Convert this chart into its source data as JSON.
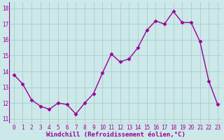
{
  "x": [
    0,
    1,
    2,
    3,
    4,
    5,
    6,
    7,
    8,
    9,
    10,
    11,
    12,
    13,
    14,
    15,
    16,
    17,
    18,
    19,
    20,
    21,
    22,
    23
  ],
  "y": [
    13.8,
    13.2,
    12.2,
    11.8,
    11.6,
    12.0,
    11.9,
    11.3,
    12.0,
    12.6,
    13.9,
    15.1,
    14.6,
    14.8,
    15.5,
    16.6,
    17.2,
    17.0,
    17.8,
    17.1,
    17.1,
    15.9,
    13.4,
    11.9
  ],
  "line_color": "#990099",
  "marker": "D",
  "markersize": 2.5,
  "linewidth": 1.0,
  "xlabel": "Windchill (Refroidissement éolien,°C)",
  "xlabel_fontsize": 6.5,
  "ytick_labels": [
    "11",
    "12",
    "13",
    "14",
    "15",
    "16",
    "17",
    "18"
  ],
  "ytick_values": [
    11,
    12,
    13,
    14,
    15,
    16,
    17,
    18
  ],
  "xtick_labels": [
    "0",
    "1",
    "2",
    "3",
    "4",
    "5",
    "6",
    "7",
    "8",
    "9",
    "10",
    "11",
    "12",
    "13",
    "14",
    "15",
    "16",
    "17",
    "18",
    "19",
    "20",
    "21",
    "22",
    "23"
  ],
  "xlim": [
    -0.5,
    23.5
  ],
  "ylim": [
    10.7,
    18.4
  ],
  "background_color": "#cce8e8",
  "grid_color": "#aacccc",
  "tick_color": "#990099",
  "tick_fontsize": 5.5,
  "xlabel_fontweight": "bold"
}
